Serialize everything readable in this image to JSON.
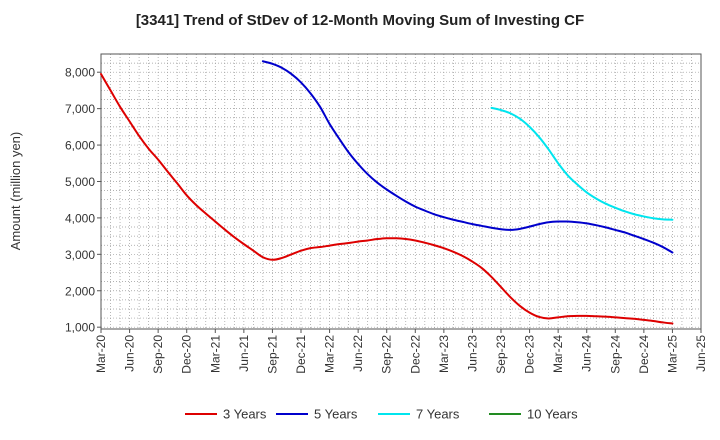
{
  "chart_data": {
    "type": "line",
    "title": "[3341]  Trend of StDev of 12-Month Moving Sum of Investing CF",
    "xlabel": "",
    "ylabel": "Amount (million yen)",
    "x_ticks": [
      "Mar-20",
      "Jun-20",
      "Sep-20",
      "Dec-20",
      "Mar-21",
      "Jun-21",
      "Sep-21",
      "Dec-21",
      "Mar-22",
      "Jun-22",
      "Sep-22",
      "Dec-22",
      "Mar-23",
      "Jun-23",
      "Sep-23",
      "Dec-23",
      "Mar-24",
      "Jun-24",
      "Sep-24",
      "Dec-24",
      "Mar-25",
      "Jun-25"
    ],
    "y_ticks": [
      "1,000",
      "2,000",
      "3,000",
      "4,000",
      "5,000",
      "6,000",
      "7,000",
      "8,000"
    ],
    "y_tick_values": [
      1000,
      2000,
      3000,
      4000,
      5000,
      6000,
      7000,
      8000
    ],
    "ylim": [
      950,
      8500
    ],
    "grid": true,
    "legend_position": "bottom",
    "series": [
      {
        "name": "3 Years",
        "color": "#dd0000",
        "points": [
          [
            "Mar-20",
            7950
          ],
          [
            "Apr-20",
            7500
          ],
          [
            "May-20",
            7050
          ],
          [
            "Jun-20",
            6650
          ],
          [
            "Jul-20",
            6250
          ],
          [
            "Aug-20",
            5900
          ],
          [
            "Sep-20",
            5600
          ],
          [
            "Oct-20",
            5270
          ],
          [
            "Nov-20",
            4950
          ],
          [
            "Dec-20",
            4620
          ],
          [
            "Jan-21",
            4350
          ],
          [
            "Feb-21",
            4120
          ],
          [
            "Mar-21",
            3900
          ],
          [
            "Apr-21",
            3680
          ],
          [
            "May-21",
            3470
          ],
          [
            "Jun-21",
            3280
          ],
          [
            "Jul-21",
            3100
          ],
          [
            "Aug-21",
            2920
          ],
          [
            "Sep-21",
            2850
          ],
          [
            "Oct-21",
            2900
          ],
          [
            "Nov-21",
            3000
          ],
          [
            "Dec-21",
            3100
          ],
          [
            "Jan-22",
            3170
          ],
          [
            "Feb-22",
            3200
          ],
          [
            "Mar-22",
            3240
          ],
          [
            "Apr-22",
            3280
          ],
          [
            "May-22",
            3310
          ],
          [
            "Jun-22",
            3350
          ],
          [
            "Jul-22",
            3380
          ],
          [
            "Aug-22",
            3420
          ],
          [
            "Sep-22",
            3440
          ],
          [
            "Oct-22",
            3440
          ],
          [
            "Nov-22",
            3420
          ],
          [
            "Dec-22",
            3380
          ],
          [
            "Jan-23",
            3320
          ],
          [
            "Feb-23",
            3250
          ],
          [
            "Mar-23",
            3170
          ],
          [
            "Apr-23",
            3070
          ],
          [
            "May-23",
            2950
          ],
          [
            "Jun-23",
            2800
          ],
          [
            "Jul-23",
            2620
          ],
          [
            "Aug-23",
            2380
          ],
          [
            "Sep-23",
            2100
          ],
          [
            "Oct-23",
            1820
          ],
          [
            "Nov-23",
            1580
          ],
          [
            "Dec-23",
            1400
          ],
          [
            "Jan-24",
            1280
          ],
          [
            "Feb-24",
            1240
          ],
          [
            "Mar-24",
            1270
          ],
          [
            "Apr-24",
            1300
          ],
          [
            "May-24",
            1310
          ],
          [
            "Jun-24",
            1310
          ],
          [
            "Jul-24",
            1300
          ],
          [
            "Aug-24",
            1290
          ],
          [
            "Sep-24",
            1270
          ],
          [
            "Oct-24",
            1250
          ],
          [
            "Nov-24",
            1230
          ],
          [
            "Dec-24",
            1200
          ],
          [
            "Jan-25",
            1170
          ],
          [
            "Feb-25",
            1130
          ],
          [
            "Mar-25",
            1100
          ]
        ]
      },
      {
        "name": "5 Years",
        "color": "#0000cc",
        "points": [
          [
            "Aug-21",
            8300
          ],
          [
            "Sep-21",
            8230
          ],
          [
            "Oct-21",
            8120
          ],
          [
            "Nov-21",
            7950
          ],
          [
            "Dec-21",
            7720
          ],
          [
            "Jan-22",
            7420
          ],
          [
            "Feb-22",
            7050
          ],
          [
            "Mar-22",
            6580
          ],
          [
            "Apr-22",
            6180
          ],
          [
            "May-22",
            5800
          ],
          [
            "Jun-22",
            5480
          ],
          [
            "Jul-22",
            5200
          ],
          [
            "Aug-22",
            4970
          ],
          [
            "Sep-22",
            4780
          ],
          [
            "Oct-22",
            4610
          ],
          [
            "Nov-22",
            4450
          ],
          [
            "Dec-22",
            4310
          ],
          [
            "Jan-23",
            4200
          ],
          [
            "Feb-23",
            4100
          ],
          [
            "Mar-23",
            4020
          ],
          [
            "Apr-23",
            3950
          ],
          [
            "May-23",
            3890
          ],
          [
            "Jun-23",
            3830
          ],
          [
            "Jul-23",
            3780
          ],
          [
            "Aug-23",
            3730
          ],
          [
            "Sep-23",
            3690
          ],
          [
            "Oct-23",
            3670
          ],
          [
            "Nov-23",
            3700
          ],
          [
            "Dec-23",
            3760
          ],
          [
            "Jan-24",
            3830
          ],
          [
            "Feb-24",
            3880
          ],
          [
            "Mar-24",
            3900
          ],
          [
            "Apr-24",
            3900
          ],
          [
            "May-24",
            3880
          ],
          [
            "Jun-24",
            3850
          ],
          [
            "Jul-24",
            3800
          ],
          [
            "Aug-24",
            3740
          ],
          [
            "Sep-24",
            3670
          ],
          [
            "Oct-24",
            3600
          ],
          [
            "Nov-24",
            3510
          ],
          [
            "Dec-24",
            3420
          ],
          [
            "Jan-25",
            3320
          ],
          [
            "Feb-25",
            3200
          ],
          [
            "Mar-25",
            3050
          ]
        ]
      },
      {
        "name": "7 Years",
        "color": "#00e5ee",
        "points": [
          [
            "Aug-23",
            7020
          ],
          [
            "Sep-23",
            6960
          ],
          [
            "Oct-23",
            6870
          ],
          [
            "Nov-23",
            6720
          ],
          [
            "Dec-23",
            6500
          ],
          [
            "Jan-24",
            6220
          ],
          [
            "Feb-24",
            5880
          ],
          [
            "Mar-24",
            5500
          ],
          [
            "Apr-24",
            5170
          ],
          [
            "May-24",
            4920
          ],
          [
            "Jun-24",
            4700
          ],
          [
            "Jul-24",
            4530
          ],
          [
            "Aug-24",
            4390
          ],
          [
            "Sep-24",
            4280
          ],
          [
            "Oct-24",
            4180
          ],
          [
            "Nov-24",
            4100
          ],
          [
            "Dec-24",
            4040
          ],
          [
            "Jan-25",
            3990
          ],
          [
            "Feb-25",
            3960
          ],
          [
            "Mar-25",
            3950
          ]
        ]
      },
      {
        "name": "10 Years",
        "color": "#228b22",
        "points": []
      }
    ]
  }
}
